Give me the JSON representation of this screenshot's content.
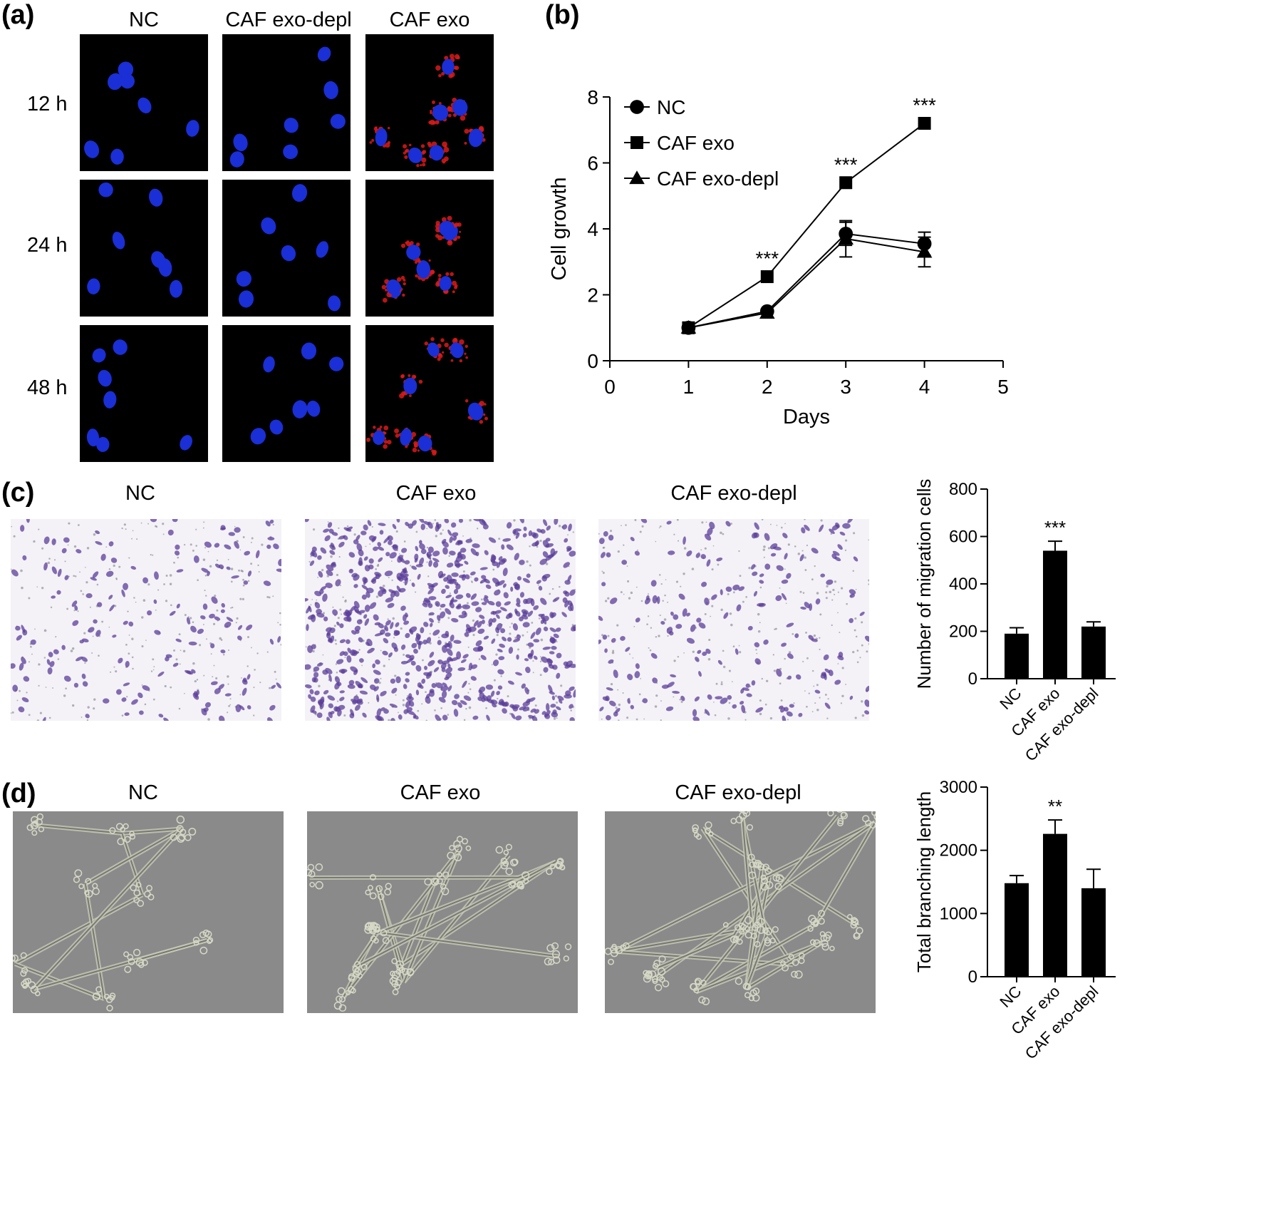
{
  "panel_a": {
    "label": "(a)",
    "columns": [
      "NC",
      "CAF exo-depl",
      "CAF exo"
    ],
    "rows": [
      "12 h",
      "24 h",
      "48 h"
    ],
    "colors": {
      "nucleus": "#1a2fd6",
      "exosome": "#d81a1a",
      "background": "#000000"
    }
  },
  "panel_b": {
    "label": "(b)"
  },
  "panel_c": {
    "label": "(c)",
    "columns": [
      "NC",
      "CAF exo",
      "CAF exo-depl"
    ],
    "stain_color": "#5b3d9a"
  },
  "panel_d": {
    "label": "(d)",
    "columns": [
      "NC",
      "CAF exo",
      "CAF exo-depl"
    ]
  },
  "chart_data": [
    {
      "id": "growth",
      "type": "line",
      "xlabel": "Days",
      "ylabel": "Cell growth",
      "xlim": [
        0,
        5
      ],
      "ylim": [
        0,
        8
      ],
      "xticks": [
        0,
        1,
        2,
        3,
        4,
        5
      ],
      "yticks": [
        0,
        2,
        4,
        6,
        8
      ],
      "legend_position": "top-left",
      "series": [
        {
          "name": "NC",
          "marker": "circle",
          "x": [
            1,
            2,
            3,
            4
          ],
          "y": [
            1.0,
            1.5,
            3.85,
            3.55
          ],
          "err": [
            0,
            0,
            0.35,
            0.35
          ]
        },
        {
          "name": "CAF exo",
          "marker": "square",
          "x": [
            1,
            2,
            3,
            4
          ],
          "y": [
            1.0,
            2.55,
            5.4,
            7.2
          ],
          "err": [
            0,
            0,
            0,
            0
          ]
        },
        {
          "name": "CAF exo-depl",
          "marker": "triangle",
          "x": [
            1,
            2,
            3,
            4
          ],
          "y": [
            1.0,
            1.45,
            3.7,
            3.3
          ],
          "err": [
            0,
            0,
            0.55,
            0.45
          ]
        }
      ],
      "annotations": [
        {
          "x": 2,
          "y": 2.55,
          "text": "***"
        },
        {
          "x": 3,
          "y": 5.4,
          "text": "***"
        },
        {
          "x": 4,
          "y": 7.2,
          "text": "***"
        }
      ]
    },
    {
      "id": "migration",
      "type": "bar",
      "ylabel": "Number of migration cells",
      "categories": [
        "NC",
        "CAF exo",
        "CAF exo-depl"
      ],
      "values": [
        190,
        540,
        220
      ],
      "errors": [
        25,
        40,
        20
      ],
      "ylim": [
        0,
        800
      ],
      "yticks": [
        0,
        200,
        400,
        600,
        800
      ],
      "annotations": [
        {
          "category": "CAF exo",
          "text": "***"
        }
      ]
    },
    {
      "id": "branching",
      "type": "bar",
      "ylabel": "Total branching length",
      "categories": [
        "NC",
        "CAF exo",
        "CAF exo-depl"
      ],
      "values": [
        1480,
        2260,
        1400
      ],
      "errors": [
        120,
        220,
        300
      ],
      "ylim": [
        0,
        3000
      ],
      "yticks": [
        0,
        1000,
        2000,
        3000
      ],
      "annotations": [
        {
          "category": "CAF exo",
          "text": "**"
        }
      ]
    }
  ]
}
